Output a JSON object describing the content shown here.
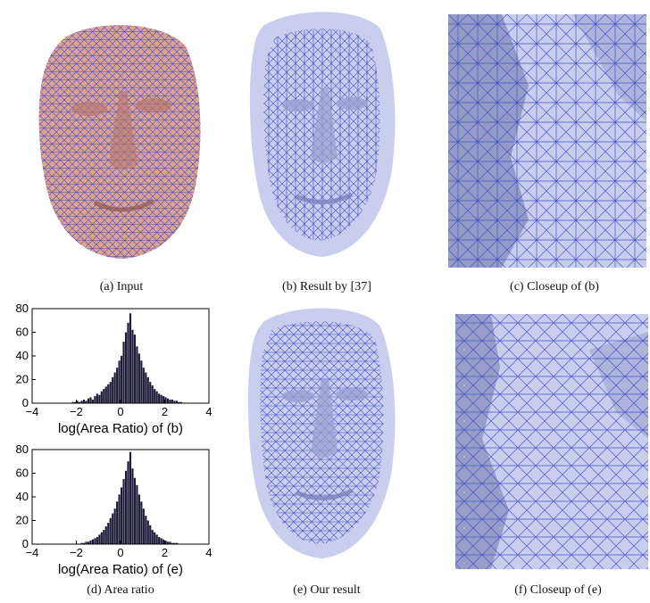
{
  "colors": {
    "skin": "#d9a197",
    "skin_shade": "#b8786f",
    "mesh": "#2f3fb8",
    "surface": "#c9cdee",
    "surface_shade": "#9aa0cf",
    "bar": "#1e1c3a"
  },
  "captions": {
    "a": "(a) Input",
    "b": "(b) Result by [37]",
    "c": "(c) Closeup of (b)",
    "d": "(d) Area ratio",
    "e": "(e) Our result",
    "f": "(f) Closeup of (e)"
  },
  "chart_data": [
    {
      "type": "bar",
      "xlabel": "log(Area Ratio) of (b)",
      "ylabel": "",
      "xlim": [
        -4,
        4
      ],
      "ylim": [
        0,
        80
      ],
      "xticks": [
        "−4",
        "−2",
        "0",
        "2",
        "4"
      ],
      "yticks": [
        "0",
        "20",
        "40",
        "60",
        "80"
      ],
      "bin_start": -2.2,
      "bin_width": 0.1,
      "values": [
        1,
        1,
        2,
        1,
        2,
        3,
        2,
        4,
        5,
        3,
        6,
        8,
        7,
        10,
        12,
        14,
        16,
        18,
        22,
        26,
        30,
        36,
        40,
        52,
        60,
        68,
        76,
        62,
        58,
        48,
        42,
        36,
        30,
        26,
        22,
        18,
        15,
        12,
        10,
        8,
        7,
        6,
        5,
        4,
        3,
        3,
        2,
        2,
        1,
        1
      ]
    },
    {
      "type": "bar",
      "xlabel": "log(Area Ratio) of (e)",
      "ylabel": "",
      "xlim": [
        -4,
        4
      ],
      "ylim": [
        0,
        80
      ],
      "xticks": [
        "−4",
        "−2",
        "0",
        "2",
        "4"
      ],
      "yticks": [
        "0",
        "20",
        "40",
        "60",
        "80"
      ],
      "bin_start": -1.8,
      "bin_width": 0.1,
      "values": [
        1,
        1,
        2,
        2,
        3,
        4,
        5,
        6,
        8,
        10,
        12,
        15,
        18,
        22,
        26,
        30,
        36,
        42,
        48,
        55,
        62,
        70,
        78,
        64,
        56,
        50,
        42,
        36,
        30,
        24,
        20,
        16,
        12,
        10,
        8,
        6,
        5,
        4,
        3,
        2,
        2,
        1,
        1,
        1
      ]
    }
  ]
}
